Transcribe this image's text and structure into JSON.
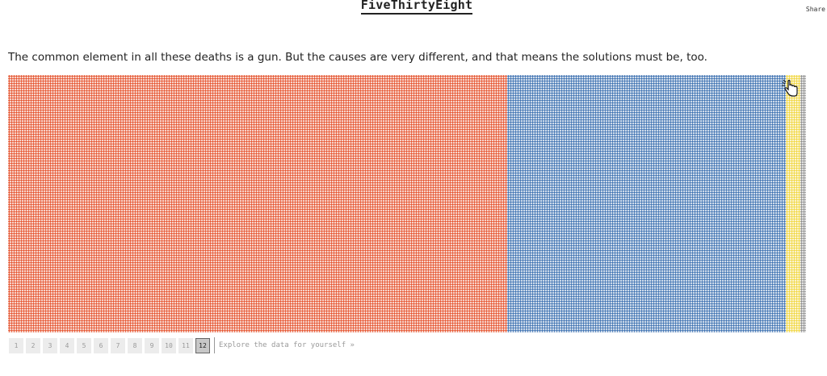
{
  "header": {
    "logo_text": "FiveThirtyEight",
    "share_label": "Share"
  },
  "main": {
    "headline": "The common element in all these deaths is a gun. But the causes are very different, and that means the solutions must be, too."
  },
  "grid": {
    "colors": {
      "red": "#e4502a",
      "blue": "#3a6fb0",
      "yellow": "#f0d53c",
      "gray": "#8a8a8a"
    }
  },
  "pager": {
    "pages": [
      "1",
      "2",
      "3",
      "4",
      "5",
      "6",
      "7",
      "8",
      "9",
      "10",
      "11",
      "12"
    ],
    "active_page": "12",
    "explore_label": "Explore the data for yourself »"
  }
}
